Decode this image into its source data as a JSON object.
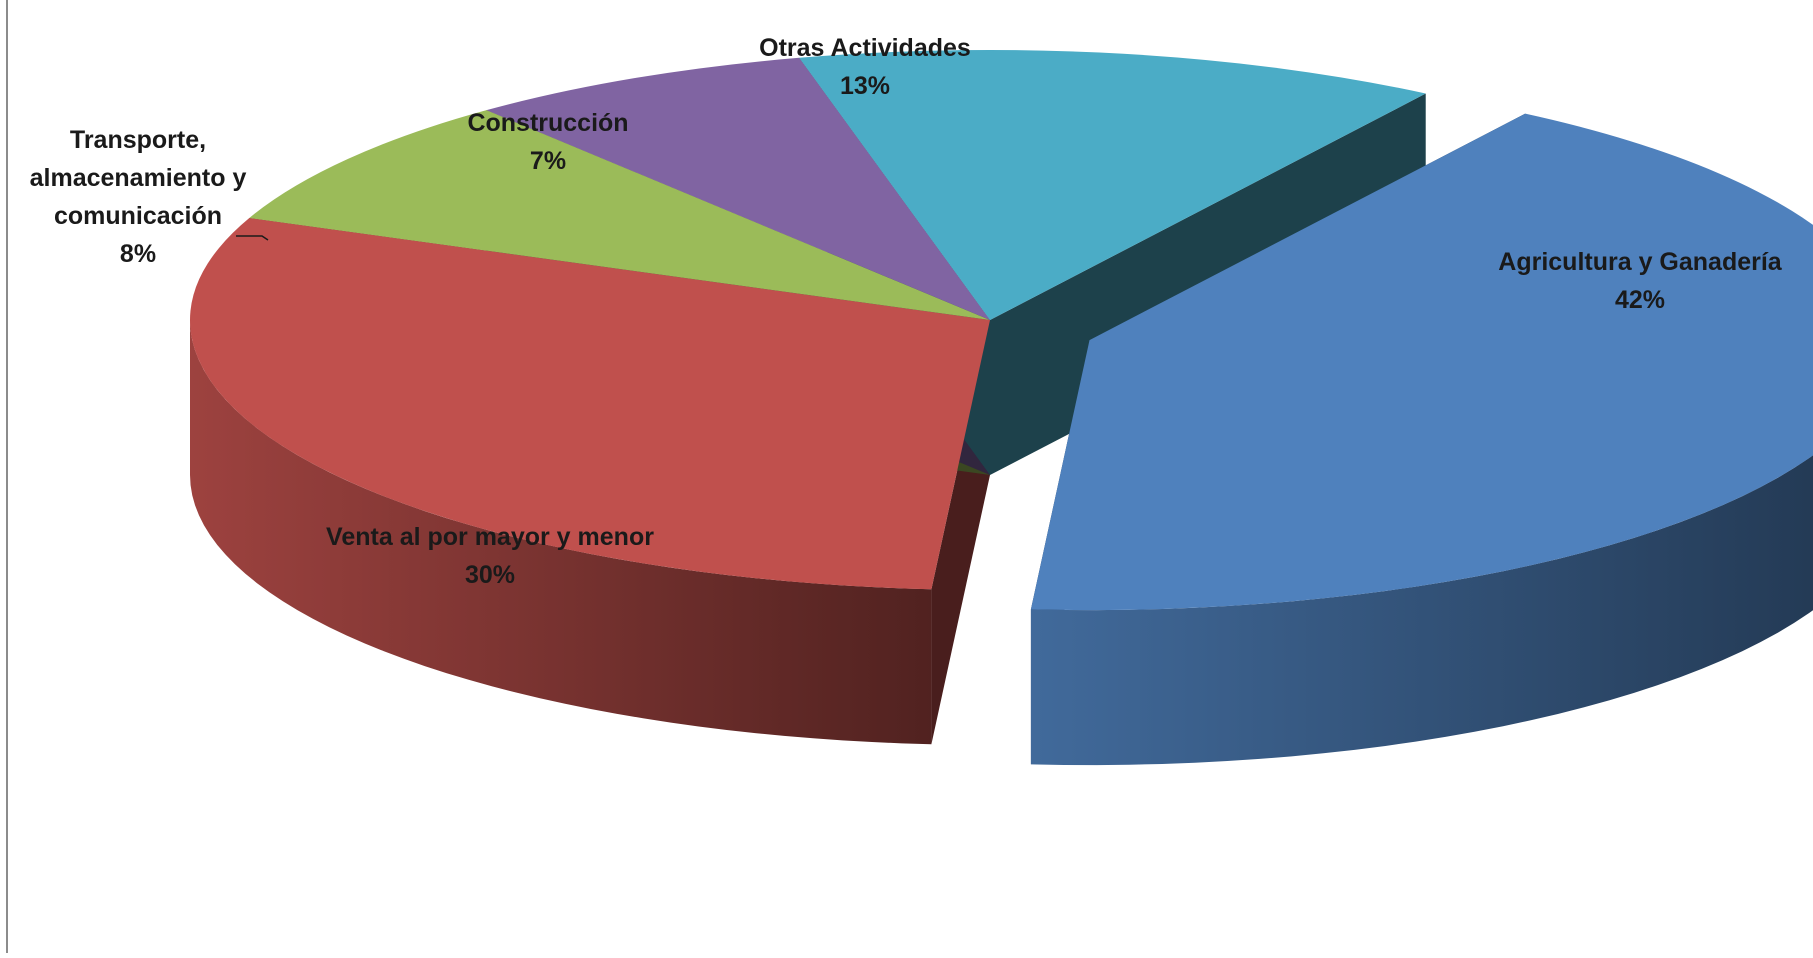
{
  "chart_data": {
    "type": "pie",
    "title": "",
    "labels": [
      "Agricultura y Ganadería",
      "Venta al por mayor y menor",
      "Transporte, almacenamiento y comunicación",
      "Construcción",
      "Otras Actividades"
    ],
    "values": [
      42,
      30,
      8,
      7,
      13
    ],
    "value_labels": [
      "42%",
      "30%",
      "8%",
      "7%",
      "13%"
    ],
    "label_lines": [
      [
        "Agricultura y Ganadería"
      ],
      [
        "Venta al por mayor y menor"
      ],
      [
        "Transporte,",
        "almacenamiento y",
        "comunicación"
      ],
      [
        "Construcción"
      ],
      [
        "Otras Actividades"
      ]
    ],
    "colors": [
      "#4F81BD",
      "#C0504D",
      "#9BBB59",
      "#8064A2",
      "#4BACC6"
    ],
    "exploded": [
      true,
      false,
      false,
      false,
      false
    ],
    "legend": "none",
    "style": "3d-exploded"
  }
}
